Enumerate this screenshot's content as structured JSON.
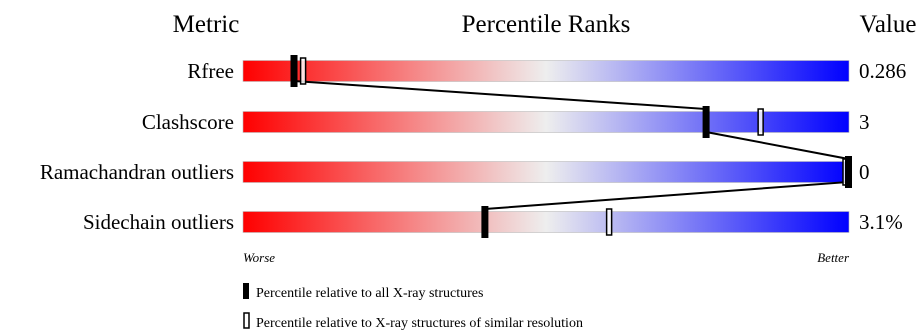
{
  "header": {
    "metric": "Metric",
    "ranks": "Percentile Ranks",
    "value": "Value"
  },
  "axis": {
    "worse": "Worse",
    "better": "Better"
  },
  "legend": {
    "all": "Percentile relative to all X-ray structures",
    "similar": "Percentile relative to X-ray structures of similar resolution"
  },
  "chart_data": {
    "type": "bar",
    "xlim": [
      0,
      100
    ],
    "gradient_colors": [
      "#ff0000",
      "#eeeeee",
      "#0000ff"
    ],
    "rows": [
      {
        "metric": "Rfree",
        "value": "0.286",
        "percentile_all": 8.5,
        "percentile_similar": 10.0
      },
      {
        "metric": "Clashscore",
        "value": "3",
        "percentile_all": 76.5,
        "percentile_similar": 85.5
      },
      {
        "metric": "Ramachandran outliers",
        "value": "0",
        "percentile_all": 100,
        "percentile_similar": 100
      },
      {
        "metric": "Sidechain outliers",
        "value": "3.1%",
        "percentile_all": 40.0,
        "percentile_similar": 60.5
      }
    ]
  }
}
